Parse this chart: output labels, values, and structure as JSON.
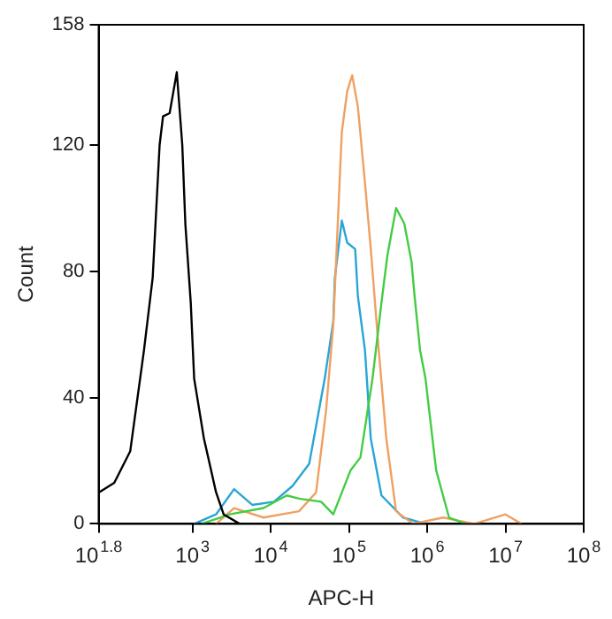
{
  "chart_data": {
    "type": "line",
    "xlabel": "APC-H",
    "ylabel": "Count",
    "log": "x",
    "marker": "none",
    "grid": false,
    "legend": false,
    "xlim": [
      63.1,
      100000000
    ],
    "xticks": [
      {
        "value": 63.1,
        "label": "10$^{1.8}$"
      },
      {
        "value": 1000,
        "label": "10$^{3}$"
      },
      {
        "value": 10000,
        "label": "10$^{4}$"
      },
      {
        "value": 100000,
        "label": "10$^{5}$"
      },
      {
        "value": 1000000,
        "label": "10$^{6}$"
      },
      {
        "value": 10000000,
        "label": "10$^{7}$"
      },
      {
        "value": 100000000,
        "label": "10$^{8}$"
      }
    ],
    "ylim": [
      0,
      158
    ],
    "yticks": [
      0,
      40,
      80,
      120,
      158
    ],
    "series": [
      {
        "color": "#000000",
        "x": [
          64,
          100,
          160,
          240,
          310,
          380,
          420,
          510,
          630,
          740,
          810,
          950,
          1050,
          1400,
          2000,
          2500,
          4000
        ],
        "values": [
          10,
          13,
          23,
          55,
          78,
          120,
          129,
          130,
          143,
          120,
          95,
          70,
          46,
          27,
          10,
          3,
          0
        ]
      },
      {
        "color": "#44cc44",
        "x": [
          1300,
          3000,
          8100,
          16000,
          23000,
          44000,
          63000,
          105000,
          140000,
          200000,
          260000,
          310000,
          400000,
          510000,
          630000,
          690000,
          810000,
          950000,
          1300000,
          1900000,
          3100000
        ],
        "values": [
          0,
          3,
          5,
          9,
          8,
          7,
          3,
          17,
          21,
          46,
          70,
          85,
          100,
          95,
          83,
          72,
          55,
          46,
          17,
          2,
          0
        ]
      },
      {
        "color": "#f0a060",
        "x": [
          2000,
          3400,
          8100,
          23000,
          38000,
          51000,
          63000,
          81000,
          95000,
          110000,
          130000,
          160000,
          190000,
          240000,
          300000,
          400000,
          660000,
          1600000,
          4000000,
          10000000,
          16000000
        ],
        "values": [
          0,
          5,
          2,
          4,
          10,
          36,
          63,
          124,
          137,
          142,
          132,
          108,
          87,
          55,
          27,
          4,
          0,
          2,
          0,
          3,
          0
        ]
      },
      {
        "color": "#2aa5d5",
        "x": [
          1050,
          2000,
          3400,
          5800,
          11000,
          19000,
          31000,
          49000,
          63000,
          66000,
          81000,
          95000,
          120000,
          130000,
          160000,
          190000,
          260000,
          490000,
          950000
        ],
        "values": [
          0,
          3,
          11,
          6,
          7,
          12,
          19,
          46,
          64,
          78,
          96,
          89,
          87,
          72,
          55,
          27,
          9,
          2,
          0
        ]
      }
    ]
  }
}
